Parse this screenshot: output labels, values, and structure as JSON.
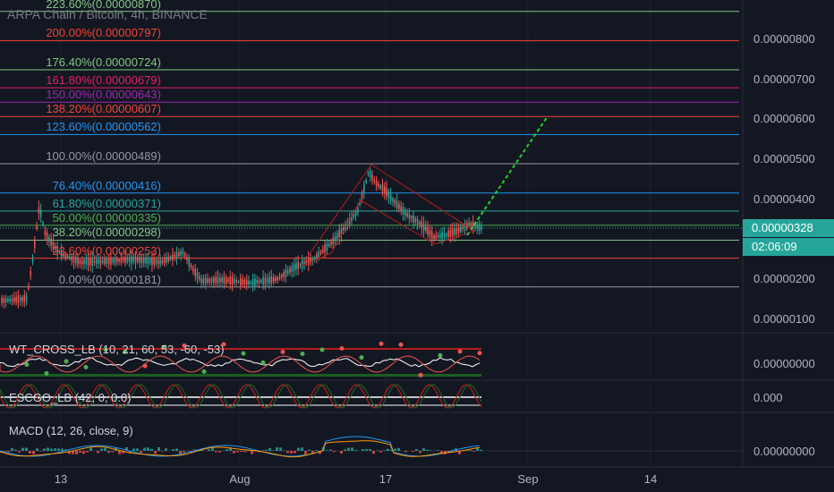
{
  "header": {
    "title": "ARPA Chain / Bitcoin, 4h, BINANCE"
  },
  "colors": {
    "background": "#131722",
    "grid": "#2a2e39",
    "up": "#26a69a",
    "down": "#ef5350",
    "projection": "#23d12e",
    "channel": "#b71c1c",
    "price_line": "#26a69a"
  },
  "fib_levels": [
    {
      "label": "223.60%(0.00000870)",
      "value": 8.7e-06,
      "color": "#81c784"
    },
    {
      "label": "200.00%(0.00000797)",
      "value": 7.97e-06,
      "color": "#f44336"
    },
    {
      "label": "176.40%(0.00000724)",
      "value": 7.24e-06,
      "color": "#81c784"
    },
    {
      "label": "161.80%(0.00000679)",
      "value": 6.79e-06,
      "color": "#e91e63"
    },
    {
      "label": "150.00%(0.00000643)",
      "value": 6.43e-06,
      "color": "#9c27b0"
    },
    {
      "label": "138.20%(0.00000607)",
      "value": 6.07e-06,
      "color": "#f44336"
    },
    {
      "label": "123.60%(0.00000562)",
      "value": 5.62e-06,
      "color": "#2196f3"
    },
    {
      "label": "100.00%(0.00000489)",
      "value": 4.89e-06,
      "color": "#9598a1"
    },
    {
      "label": "76.40%(0.00000416)",
      "value": 4.16e-06,
      "color": "#2196f3"
    },
    {
      "label": "61.80%(0.00000371)",
      "value": 3.71e-06,
      "color": "#26a69a"
    },
    {
      "label": "50.00%(0.00000335)",
      "value": 3.35e-06,
      "color": "#4caf50"
    },
    {
      "label": "38.20%(0.00000298)",
      "value": 2.98e-06,
      "color": "#81c784"
    },
    {
      "label": "23.60%(0.00000253)",
      "value": 2.53e-06,
      "color": "#f44336"
    },
    {
      "label": "0.00%(0.00000181)",
      "value": 1.81e-06,
      "color": "#9598a1"
    }
  ],
  "price_axis": {
    "ticks": [
      "0.00000800",
      "0.00000700",
      "0.00000600",
      "0.00000500",
      "0.00000400",
      "0.00000200",
      "0.00000100"
    ],
    "current_price": "0.00000328",
    "countdown": "02:06:09"
  },
  "panes": {
    "wt_cross": {
      "title": "WT_CROSS_LB (10, 21, 60, 53, -60, -53)",
      "axis": "0.00000000"
    },
    "escgo": {
      "title": "ESCGO_LB (42, 0, 0.0)",
      "axis": "0.000"
    },
    "macd": {
      "title": "MACD (12, 26, close, 9)",
      "axis": "0.00000000"
    }
  },
  "time_axis": {
    "labels": [
      "13",
      "Aug",
      "17",
      "Sep",
      "14"
    ]
  }
}
